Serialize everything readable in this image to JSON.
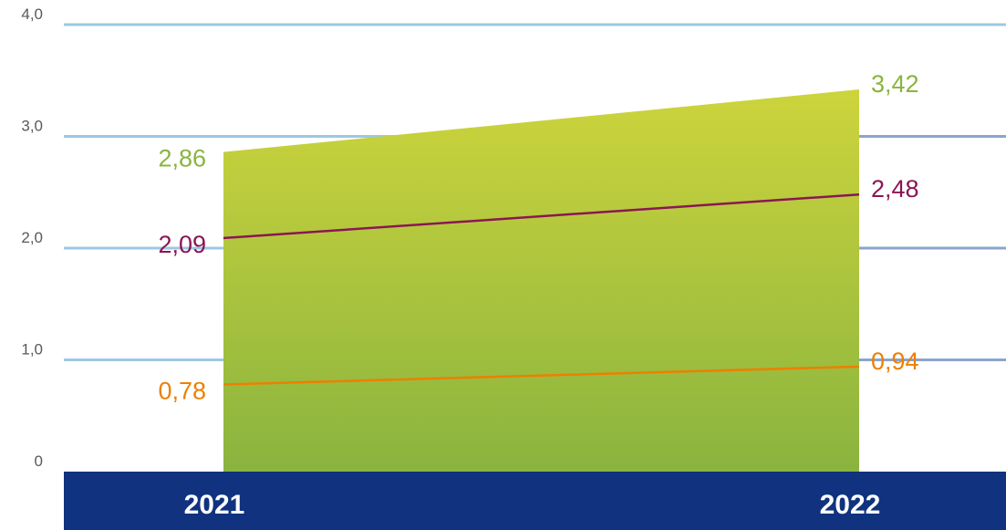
{
  "chart_data": {
    "type": "area",
    "categories": [
      "2021",
      "2022"
    ],
    "y_ticks": [
      "0",
      "1,0",
      "2,0",
      "3,0",
      "4,0"
    ],
    "ylim": [
      0,
      4
    ],
    "grid": true,
    "series": [
      {
        "type": "area",
        "values": [
          2.86,
          3.42
        ],
        "labels": [
          "2,86",
          "3,42"
        ],
        "color": "#8ab43f",
        "color_top": "#cdd43c"
      },
      {
        "type": "line",
        "values": [
          2.09,
          2.48
        ],
        "labels": [
          "2,09",
          "2,48"
        ],
        "color": "#8b1654"
      },
      {
        "type": "line",
        "values": [
          0.78,
          0.94
        ],
        "labels": [
          "0,78",
          "0,94"
        ],
        "color": "#ee7f00"
      }
    ],
    "colors": {
      "axis_band": "#10327f",
      "grid": "#9cc8e4",
      "grid_dark": "#7f8fc0",
      "tick_text": "#555a60"
    }
  }
}
